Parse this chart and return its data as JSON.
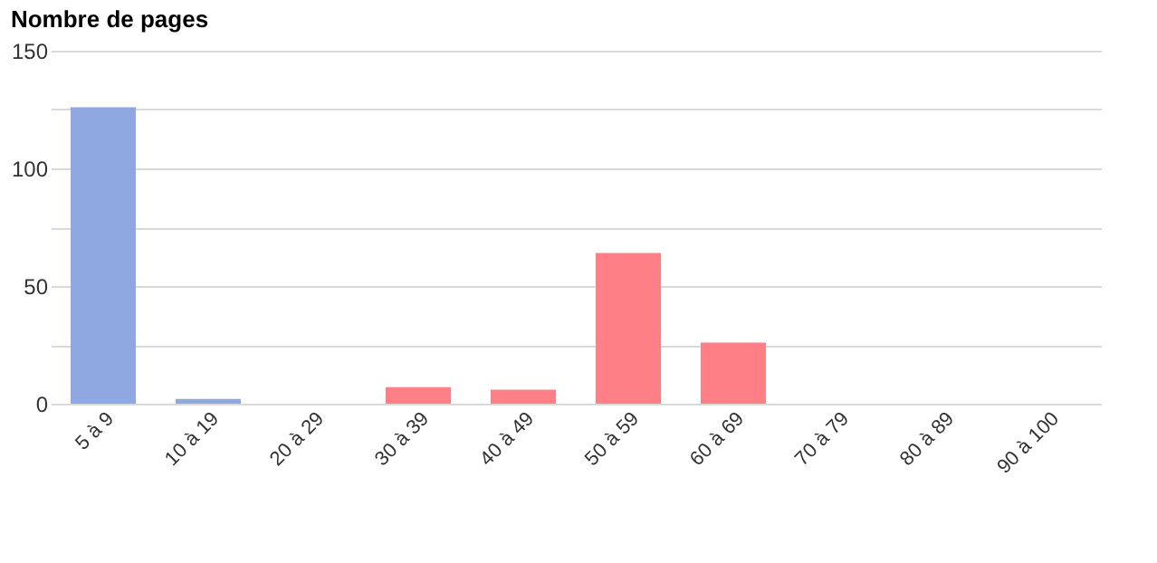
{
  "chart_data": {
    "type": "bar",
    "title": "Nombre de pages",
    "categories": [
      "5 à 9",
      "10 à 19",
      "20 à 29",
      "30 à 39",
      "40 à 49",
      "50 à 59",
      "60 à 69",
      "70 à 79",
      "80 à 89",
      "90 à 100"
    ],
    "values": [
      126,
      2,
      0,
      7,
      6,
      64,
      26,
      0,
      0,
      0
    ],
    "colors": [
      "#8fa8e2",
      "#8fa8e2",
      "#8fa8e2",
      "#ff7f87",
      "#ff7f87",
      "#ff7f87",
      "#ff7f87",
      "#ff7f87",
      "#ff7f87",
      "#ff7f87"
    ],
    "ylim": [
      0,
      150
    ],
    "yticks": [
      0,
      {
        "value": 25,
        "label": null
      },
      50,
      {
        "value": 75,
        "label": null
      },
      100,
      {
        "value": 125,
        "label": null
      },
      150
    ],
    "grid": "y"
  }
}
